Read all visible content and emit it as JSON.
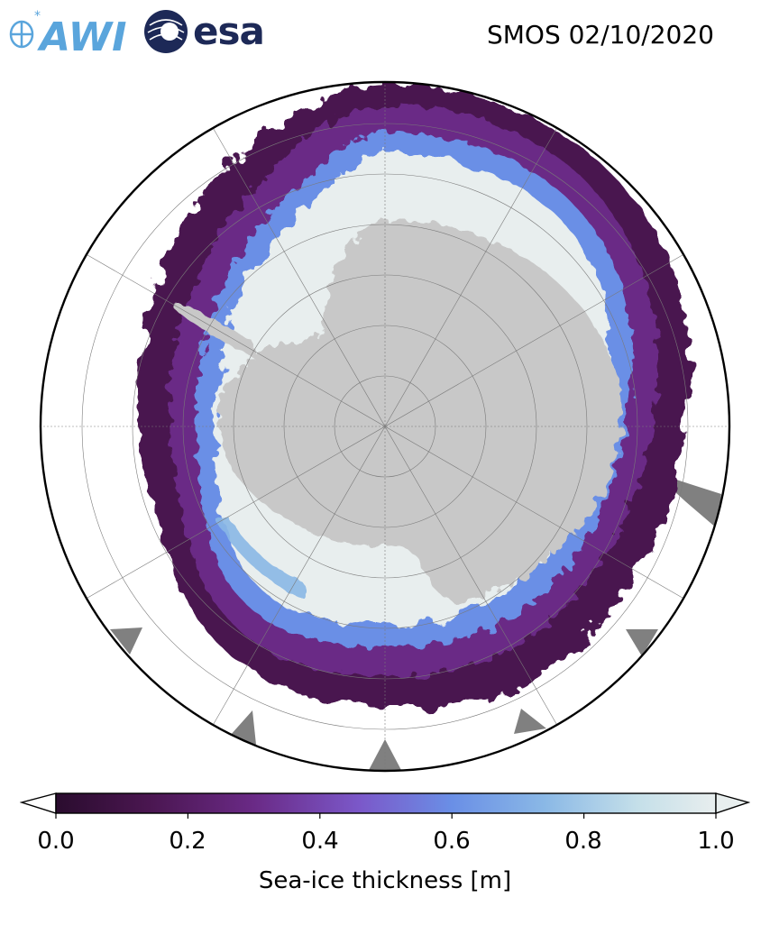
{
  "header": {
    "awi_logo_text": "AWI",
    "esa_logo_text": "esa",
    "title": "SMOS 02/10/2020"
  },
  "map": {
    "projection": "south-polar-stereographic",
    "variable": "sea-ice thickness",
    "colors": {
      "land": "#c8c8c8",
      "open_ocean": "#ffffff",
      "grid": "#7a7a7a",
      "no_data_patches": "#808080",
      "boundary": "#000000"
    },
    "graticule": {
      "latitude_circles": 5,
      "meridians": 12
    }
  },
  "colorbar": {
    "label": "Sea-ice thickness [m]",
    "ticks": [
      "0.0",
      "0.2",
      "0.4",
      "0.6",
      "0.8",
      "1.0"
    ],
    "range": [
      0.0,
      1.0
    ],
    "extend": "both",
    "colormap": [
      "#2a0c2e",
      "#4a1650",
      "#6a2a86",
      "#7b58c9",
      "#6a8fe6",
      "#8ab8e6",
      "#c4dfe9",
      "#e8eeee"
    ]
  }
}
